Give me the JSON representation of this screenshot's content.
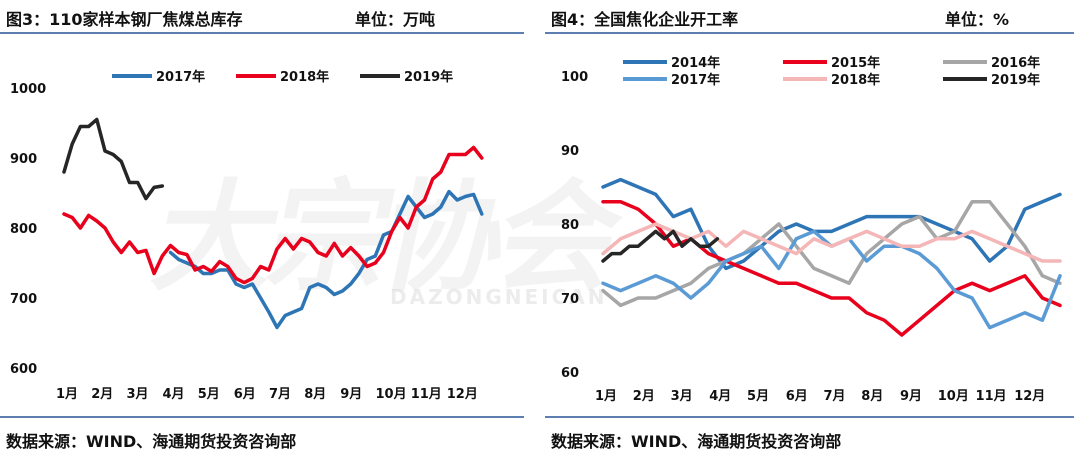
{
  "watermark": {
    "main": "大宗协会",
    "sub": "DAZONGNEICAN"
  },
  "left": {
    "title": "图3：110家样本钢厂焦煤总库存",
    "unit": "单位：万吨",
    "source": "数据来源：WIND、海通期货投资咨询部"
  },
  "right": {
    "title": "图4：全国焦化企业开工率",
    "unit": "单位：%",
    "source": "数据来源：WIND、海通期货投资咨询部"
  },
  "chart_data": [
    {
      "type": "line",
      "title": "图3：110家样本钢厂焦煤总库存",
      "ylabel": "",
      "ylim": [
        600,
        1000
      ],
      "yticks": [
        600,
        700,
        800,
        900,
        1000
      ],
      "xlim": [
        0,
        52
      ],
      "xticks": [
        {
          "x": 0,
          "label": "1月"
        },
        {
          "x": 4.3,
          "label": "2月"
        },
        {
          "x": 8.6,
          "label": "3月"
        },
        {
          "x": 13,
          "label": "4月"
        },
        {
          "x": 17.3,
          "label": "5月"
        },
        {
          "x": 21.7,
          "label": "6月"
        },
        {
          "x": 26,
          "label": "7月"
        },
        {
          "x": 30.3,
          "label": "8月"
        },
        {
          "x": 34.7,
          "label": "9月"
        },
        {
          "x": 39,
          "label": "10月"
        },
        {
          "x": 43.3,
          "label": "11月"
        },
        {
          "x": 47.7,
          "label": "12月"
        }
      ],
      "legend": {
        "position": "top",
        "columns": 3
      },
      "series": [
        {
          "name": "2017年",
          "color": "#2e75b6",
          "x": [
            13,
            14,
            15,
            16,
            17,
            18,
            19,
            20,
            21,
            22,
            23,
            24,
            25,
            26,
            27,
            28,
            29,
            30,
            31,
            32,
            33,
            34,
            35,
            36,
            37,
            38,
            39,
            40,
            41,
            42,
            43,
            44,
            45,
            46,
            47,
            48,
            49,
            50,
            51
          ],
          "values": [
            765,
            755,
            750,
            745,
            735,
            735,
            740,
            740,
            720,
            715,
            720,
            700,
            680,
            658,
            675,
            680,
            685,
            715,
            720,
            715,
            705,
            710,
            720,
            735,
            755,
            760,
            790,
            795,
            820,
            845,
            830,
            815,
            820,
            830,
            852,
            840,
            845,
            848,
            820
          ]
        },
        {
          "name": "2018年",
          "color": "#e8001c",
          "x": [
            0,
            1,
            2,
            3,
            4,
            5,
            6,
            7,
            8,
            9,
            10,
            11,
            12,
            13,
            14,
            15,
            16,
            17,
            18,
            19,
            20,
            21,
            22,
            23,
            24,
            25,
            26,
            27,
            28,
            29,
            30,
            31,
            32,
            33,
            34,
            35,
            36,
            37,
            38,
            39,
            40,
            41,
            42,
            43,
            44,
            45,
            46,
            47,
            48,
            49,
            50,
            51
          ],
          "values": [
            820,
            815,
            800,
            818,
            810,
            800,
            780,
            765,
            780,
            765,
            768,
            735,
            760,
            775,
            765,
            762,
            740,
            745,
            738,
            752,
            745,
            728,
            722,
            728,
            745,
            740,
            770,
            785,
            770,
            785,
            780,
            765,
            760,
            778,
            760,
            772,
            760,
            745,
            750,
            765,
            795,
            815,
            800,
            830,
            840,
            870,
            880,
            905,
            905,
            905,
            915,
            900
          ]
        },
        {
          "name": "2019年",
          "color": "#262626",
          "x": [
            0,
            1,
            2,
            3,
            4,
            5,
            6,
            7,
            8,
            9,
            10,
            11,
            12
          ],
          "values": [
            880,
            920,
            945,
            945,
            955,
            910,
            905,
            895,
            865,
            865,
            842,
            858,
            860
          ]
        }
      ]
    },
    {
      "type": "line",
      "title": "图4：全国焦化企业开工率",
      "ylabel": "",
      "ylim": [
        60,
        100
      ],
      "yticks": [
        60,
        70,
        80,
        90,
        100
      ],
      "xlim": [
        0,
        52
      ],
      "xticks": [
        {
          "x": 0,
          "label": "1月"
        },
        {
          "x": 4.3,
          "label": "2月"
        },
        {
          "x": 8.6,
          "label": "3月"
        },
        {
          "x": 13,
          "label": "4月"
        },
        {
          "x": 17.3,
          "label": "5月"
        },
        {
          "x": 21.7,
          "label": "6月"
        },
        {
          "x": 26,
          "label": "7月"
        },
        {
          "x": 30.3,
          "label": "8月"
        },
        {
          "x": 34.7,
          "label": "9月"
        },
        {
          "x": 39,
          "label": "10月"
        },
        {
          "x": 43.3,
          "label": "11月"
        },
        {
          "x": 47.7,
          "label": "12月"
        }
      ],
      "legend": {
        "position": "top",
        "columns": 3
      },
      "series": [
        {
          "name": "2014年",
          "color": "#2e75b6",
          "x": [
            0,
            2,
            4,
            6,
            8,
            10,
            12,
            14,
            16,
            18,
            20,
            22,
            24,
            26,
            28,
            30,
            32,
            34,
            36,
            38,
            40,
            42,
            44,
            46,
            48,
            50,
            52
          ],
          "values": [
            85,
            86,
            85,
            84,
            81,
            82,
            77,
            74,
            75,
            77,
            79,
            80,
            79,
            79,
            80,
            81,
            81,
            81,
            81,
            80,
            79,
            78,
            75,
            77,
            82,
            83,
            84
          ]
        },
        {
          "name": "2015年",
          "color": "#e8001c",
          "x": [
            0,
            2,
            4,
            6,
            8,
            10,
            12,
            14,
            16,
            18,
            20,
            22,
            24,
            26,
            28,
            30,
            32,
            34,
            36,
            38,
            40,
            42,
            44,
            46,
            48,
            50,
            52
          ],
          "values": [
            83,
            83,
            82,
            80,
            77,
            78,
            76,
            75,
            74,
            73,
            72,
            72,
            71,
            70,
            70,
            68,
            67,
            65,
            67,
            69,
            71,
            72,
            71,
            72,
            73,
            70,
            69
          ]
        },
        {
          "name": "2016年",
          "color": "#a6a6a6",
          "x": [
            0,
            2,
            4,
            6,
            8,
            10,
            12,
            14,
            16,
            18,
            20,
            22,
            24,
            26,
            28,
            30,
            32,
            34,
            36,
            38,
            40,
            42,
            44,
            46,
            48,
            50,
            52
          ],
          "values": [
            71,
            69,
            70,
            70,
            71,
            72,
            74,
            75,
            76,
            78,
            80,
            77,
            74,
            73,
            72,
            76,
            78,
            80,
            81,
            78,
            79,
            83,
            83,
            80,
            77,
            73,
            72
          ]
        },
        {
          "name": "2017年",
          "color": "#5b9bd5",
          "x": [
            0,
            2,
            4,
            6,
            8,
            10,
            12,
            14,
            16,
            18,
            20,
            22,
            24,
            26,
            28,
            30,
            32,
            34,
            36,
            38,
            40,
            42,
            44,
            46,
            48,
            50,
            52
          ],
          "values": [
            72,
            71,
            72,
            73,
            72,
            70,
            72,
            75,
            76,
            77,
            74,
            78,
            79,
            77,
            78,
            75,
            77,
            77,
            76,
            74,
            71,
            70,
            66,
            67,
            68,
            67,
            73
          ]
        },
        {
          "name": "2018年",
          "color": "#f4b6b6",
          "x": [
            0,
            2,
            4,
            6,
            8,
            10,
            12,
            14,
            16,
            18,
            20,
            22,
            24,
            26,
            28,
            30,
            32,
            34,
            36,
            38,
            40,
            42,
            44,
            46,
            48,
            50,
            52
          ],
          "values": [
            76,
            78,
            79,
            80,
            79,
            78,
            79,
            77,
            79,
            78,
            77,
            76,
            78,
            77,
            78,
            79,
            78,
            77,
            77,
            78,
            78,
            79,
            78,
            77,
            76,
            75,
            75
          ]
        },
        {
          "name": "2019年",
          "color": "#262626",
          "x": [
            0,
            1,
            2,
            3,
            4,
            5,
            6,
            7,
            8,
            9,
            10,
            11,
            12,
            13
          ],
          "values": [
            75,
            76,
            76,
            77,
            77,
            78,
            79,
            78,
            79,
            77,
            78,
            77,
            77,
            78
          ]
        }
      ]
    }
  ]
}
